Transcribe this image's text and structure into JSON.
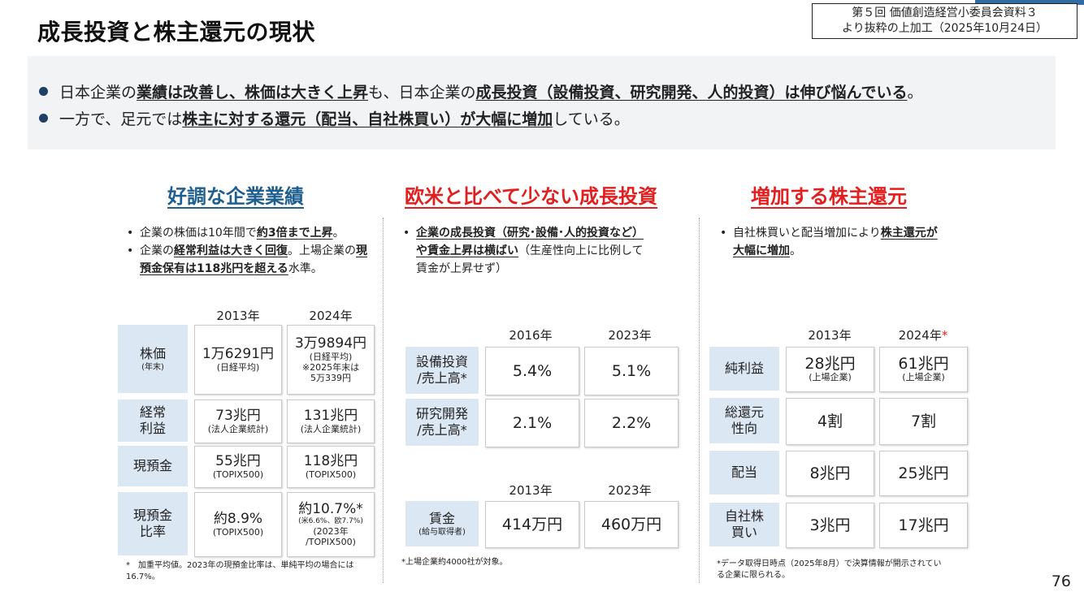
{
  "title": "成長投資と株主還元の現状",
  "source": {
    "line1": "第５回 価値創造経営小委員会資料３",
    "line2": "より抜粋の上加工（2025年10月24日）"
  },
  "summary": {
    "b1": {
      "t1": "日本企業の",
      "u1": "業績は改善し、株価は大きく上昇",
      "t2": "も、日本企業の",
      "u2": "成長投資（設備投資、研究開発、人的投資）は伸び悩んでいる",
      "t3": "。"
    },
    "b2": {
      "t1": "一方で、足元では",
      "u1": "株主に対する還元（配当、自社株買い）が大幅に増加",
      "t2": "している。"
    }
  },
  "col1": {
    "title": "好調な企業業績",
    "n1": {
      "t1": "企業の株価は10年間で",
      "u1": "約3倍まで上昇",
      "t2": "。"
    },
    "n2": {
      "t1": "企業の",
      "u1": "経常利益は大きく回復",
      "t2": "。上場企業の",
      "u2": "現預金保有は118兆円を超える",
      "t3": "水準。"
    },
    "y1": "2013年",
    "y2": "2024年",
    "rows": [
      {
        "label": "株価",
        "sub": "(年末)",
        "v1": "1万6291円",
        "v1s": "(日経平均)",
        "v2": "3万9894円",
        "v2s": "(日経平均)",
        "v2n1": "※2025年末は",
        "v2n2": "5万339円"
      },
      {
        "label1": "経常",
        "label2": "利益",
        "v1": "73兆円",
        "v1s": "(法人企業統計)",
        "v2": "131兆円",
        "v2s": "(法人企業統計)"
      },
      {
        "label": "現預金",
        "v1": "55兆円",
        "v1s": "(TOPIX500)",
        "v2": "118兆円",
        "v2s": "(TOPIX500)"
      },
      {
        "label1": "現預金",
        "label2": "比率",
        "v1": "約8.9%",
        "v1s": "(TOPIX500)",
        "v2": "約10.7%*",
        "v2n1": "(米6.6%、欧7.7%)",
        "v2n2": "(2023年",
        "v2n3": "/TOPIX500)"
      }
    ],
    "foot1": "*　加重平均値。2023年の現預金比率は、単純平均の場合には",
    "foot2": "16.7%。"
  },
  "col2": {
    "title": "欧米と比べて少ない成長投資",
    "n1": {
      "u1": "企業の成長投資（研究･設備･人的投資など）",
      "u2": "や賃金上昇は横ばい",
      "t1": "（生産性向上に比例して",
      "t2": "賃金が上昇せず）"
    },
    "y1": "2016年",
    "y2": "2023年",
    "y3": "2013年",
    "y4": "2023年",
    "rows": [
      {
        "label1": "設備投資",
        "label2": "/売上高*",
        "v1": "5.4%",
        "v2": "5.1%"
      },
      {
        "label1": "研究開発",
        "label2": "/売上高*",
        "v1": "2.1%",
        "v2": "2.2%"
      },
      {
        "label": "賃金",
        "sub": "(給与取得者)",
        "v1": "414万円",
        "v2": "460万円"
      }
    ],
    "foot": "*上場企業約4000社が対象。"
  },
  "col3": {
    "title": "増加する株主還元",
    "n1": {
      "t1": "自社株買いと配当増加により",
      "u1": "株主還元が",
      "u2": "大幅に増加",
      "t2": "。"
    },
    "y1": "2013年",
    "y2": "2024年",
    "y2ast": "*",
    "rows": [
      {
        "label": "純利益",
        "v1": "28兆円",
        "v1s": "(上場企業)",
        "v2": "61兆円",
        "v2s": "(上場企業)"
      },
      {
        "label1": "総還元",
        "label2": "性向",
        "v1": "4割",
        "v2": "7割"
      },
      {
        "label": "配当",
        "v1": "8兆円",
        "v2": "25兆円"
      },
      {
        "label1": "自社株",
        "label2": "買い",
        "v1": "3兆円",
        "v2": "17兆円"
      }
    ],
    "foot1": "*データ取得日時点（2025年8月）で決算情報が開示されてい",
    "foot2": "る企業に限られる。"
  },
  "page": "76"
}
